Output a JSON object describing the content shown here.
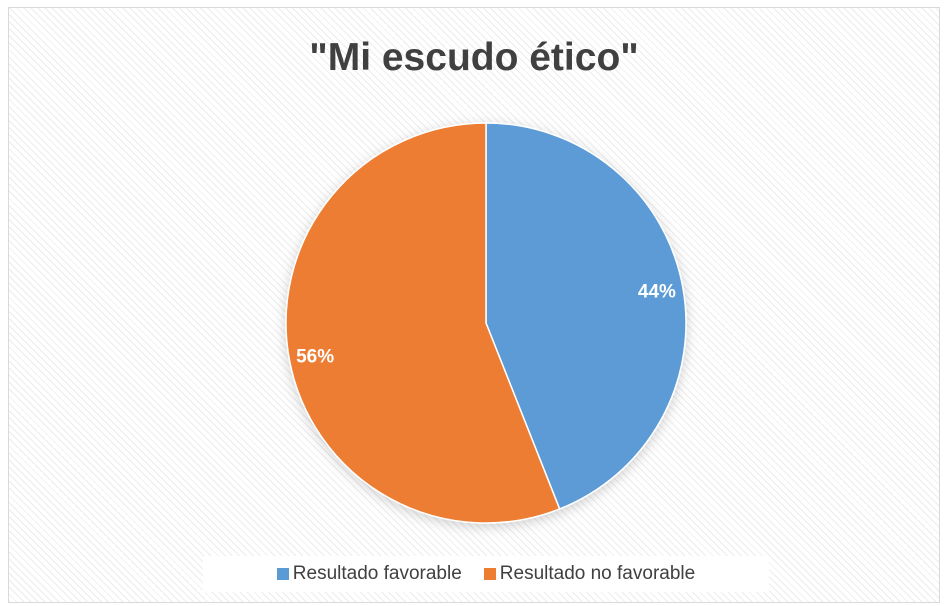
{
  "chart_data": {
    "type": "pie",
    "title": "\"Mi escudo ético\"",
    "slices": [
      {
        "label": "Resultado favorable",
        "value": 44,
        "display": "44%",
        "color": "#5b9bd5"
      },
      {
        "label": "Resultado no favorable",
        "value": 56,
        "display": "56%",
        "color": "#ed7d31"
      }
    ],
    "legend_position": "bottom",
    "data_label_color": "#ffffff"
  }
}
